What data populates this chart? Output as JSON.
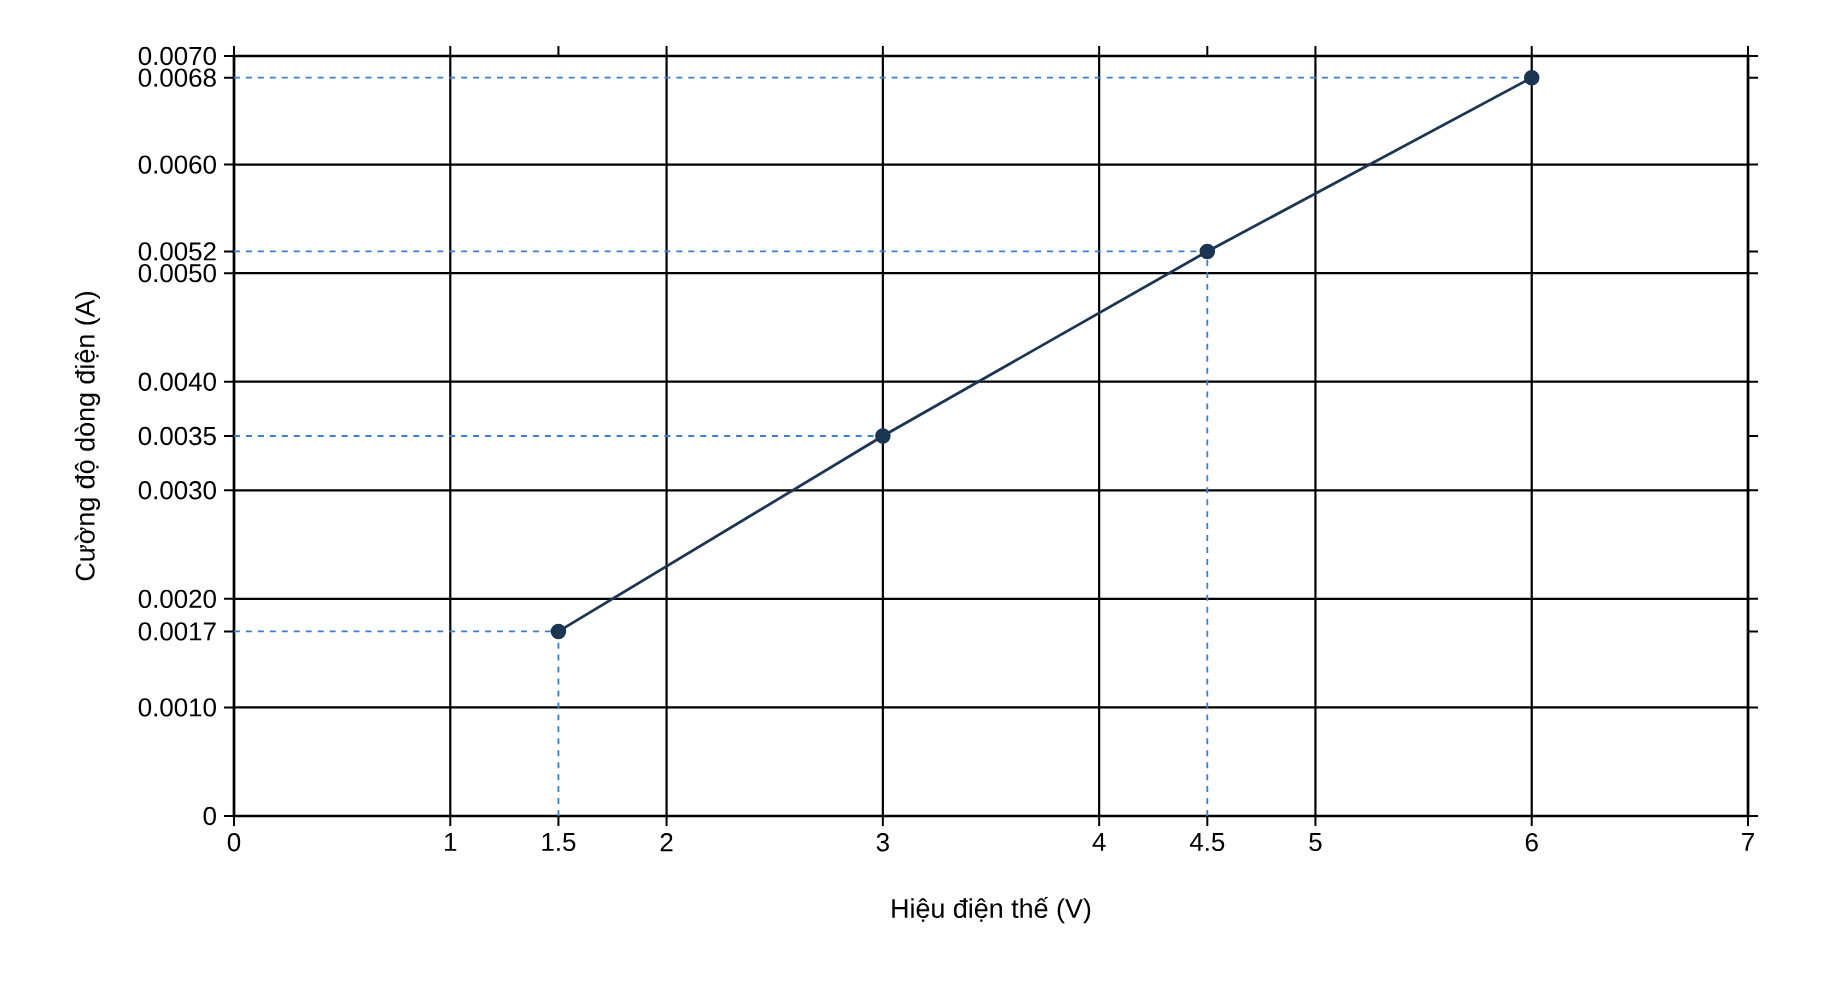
{
  "chart_data": {
    "type": "line",
    "xlabel": "Hiệu điện thế (V)",
    "ylabel": "Cường độ dòng điện (A)",
    "x": [
      1.5,
      3,
      4.5,
      6
    ],
    "series": [
      {
        "color": "#1c3553",
        "values": [
          0.0017,
          0.0035,
          0.0052,
          0.0068
        ]
      },
      {
        "color": "#3b7fd1",
        "x": [
          0,
          1.5
        ],
        "values": [
          0.0017,
          0.0017
        ],
        "line_style": "dashed",
        "marker": "none"
      },
      {
        "color": "#3b7fd1",
        "x": [
          1.5,
          1.5
        ],
        "values": [
          0,
          0.0017
        ],
        "line_style": "dashed",
        "marker": "none"
      },
      {
        "color": "#3b7fd1",
        "x": [
          0,
          3
        ],
        "values": [
          0.0035,
          0.0035
        ],
        "line_style": "dashed",
        "marker": "none"
      },
      {
        "color": "#3b7fd1",
        "x": [
          0,
          4.5
        ],
        "values": [
          0.0052,
          0.0052
        ],
        "line_style": "dashed",
        "marker": "none"
      },
      {
        "color": "#3b7fd1",
        "x": [
          4.5,
          4.5
        ],
        "values": [
          0,
          0.0052
        ],
        "line_style": "dashed",
        "marker": "none"
      },
      {
        "color": "#3b7fd1",
        "x": [
          0,
          6
        ],
        "values": [
          0.0068,
          0.0068
        ],
        "line_style": "dashed",
        "marker": "none"
      }
    ],
    "xlim": [
      0,
      7
    ],
    "ylim": [
      0,
      0.007
    ],
    "xticks": [
      0,
      1,
      1.5,
      2,
      3,
      4,
      4.5,
      5,
      6,
      7
    ],
    "yticks": [
      0,
      {
        "value": 0.001,
        "label": "0.0010"
      },
      {
        "value": 0.0017,
        "label": "0.0017"
      },
      {
        "value": 0.002,
        "label": "0.0020"
      },
      {
        "value": 0.003,
        "label": "0.0030"
      },
      {
        "value": 0.0035,
        "label": "0.0035"
      },
      {
        "value": 0.004,
        "label": "0.0040"
      },
      {
        "value": 0.005,
        "label": "0.0050"
      },
      {
        "value": 0.0052,
        "label": "0.0052"
      },
      {
        "value": 0.006,
        "label": "0.0060"
      },
      {
        "value": 0.0068,
        "label": "0.0068"
      },
      {
        "value": 0.007,
        "label": "0.0070"
      }
    ],
    "grid": true,
    "marker": "circle",
    "line_style": "solid"
  }
}
